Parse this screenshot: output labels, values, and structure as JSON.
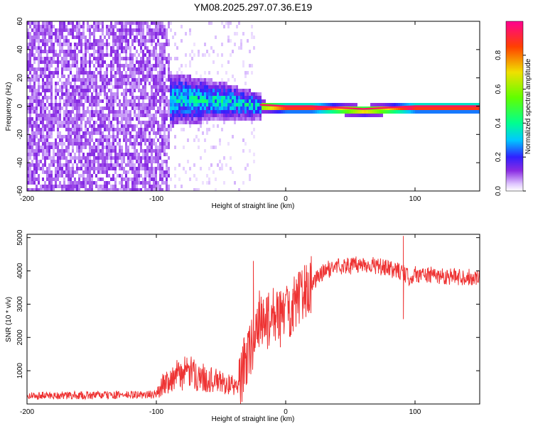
{
  "figure_title": "YM08.2025.297.07.36.E19",
  "chart_data": [
    {
      "type": "heatmap",
      "xlabel": "Height of straight line (km)",
      "ylabel": "Frequency (Hz)",
      "xlim": [
        -200,
        150
      ],
      "ylim": [
        -60,
        60
      ],
      "x_ticks": [
        -200,
        -100,
        0,
        100
      ],
      "y_ticks": [
        -60,
        -40,
        -20,
        0,
        20,
        40,
        60
      ],
      "colorbar": {
        "label": "Normalized spectral amplitude",
        "range": [
          0,
          1
        ],
        "ticks": [
          0.0,
          0.2,
          0.4,
          0.6,
          0.8
        ],
        "tick_labels": [
          "0.0",
          "0.2",
          "0.4",
          "0.6",
          "0.8"
        ]
      },
      "regions": [
        {
          "description": "broadband noise",
          "x": [
            -200,
            -90
          ],
          "freq": [
            -60,
            60
          ],
          "amplitude": [
            0.02,
            0.12
          ]
        },
        {
          "description": "sparse noise",
          "x": [
            -90,
            -25
          ],
          "freq": [
            -60,
            60
          ],
          "amplitude": [
            0.0,
            0.05
          ]
        },
        {
          "description": "signal band",
          "x": [
            -90,
            150
          ],
          "center_freq": [
            [
              -90,
              6
            ],
            [
              -50,
              5
            ],
            [
              -20,
              1
            ],
            [
              0,
              0
            ],
            [
              20,
              0
            ],
            [
              60,
              -2
            ],
            [
              100,
              0
            ],
            [
              150,
              0
            ]
          ],
          "amplitude": [
            0.25,
            0.95
          ]
        }
      ]
    },
    {
      "type": "line",
      "xlabel": "Height of straight line (km)",
      "ylabel": "SNR (10 * v/v)",
      "xlim": [
        -200,
        150
      ],
      "ylim": [
        0,
        5100
      ],
      "x_ticks": [
        -200,
        -100,
        0,
        100
      ],
      "y_ticks": [
        1000,
        2000,
        3000,
        4000,
        5000
      ],
      "color": "#ee3333",
      "series": [
        {
          "name": "SNR",
          "x": [
            -200,
            -150,
            -100,
            -95,
            -85,
            -75,
            -65,
            -55,
            -45,
            -36,
            -32,
            -25,
            -20,
            -15,
            -10,
            -5,
            0,
            10,
            20,
            30,
            40,
            50,
            60,
            70,
            80,
            88,
            92,
            95,
            100,
            120,
            150
          ],
          "values": [
            250,
            260,
            280,
            600,
            850,
            950,
            800,
            700,
            600,
            500,
            1200,
            1900,
            2600,
            2400,
            2800,
            2500,
            2800,
            3100,
            3600,
            4000,
            4150,
            4150,
            4200,
            4150,
            4050,
            4000,
            3900,
            3800,
            3900,
            3850,
            3800
          ]
        }
      ],
      "annotations": [
        {
          "x": 91,
          "y": 5050,
          "description": "spike max"
        },
        {
          "x": 91,
          "y": 2550,
          "description": "spike min"
        },
        {
          "x": -25,
          "y": 4300,
          "description": "spike"
        }
      ]
    }
  ]
}
